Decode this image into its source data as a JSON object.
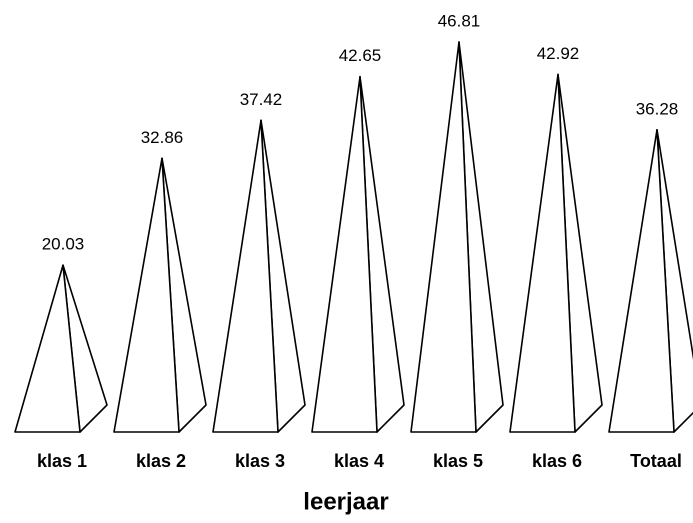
{
  "chart_data": {
    "type": "pyramid",
    "x_label": "leerjaar",
    "categories": [
      "klas 1",
      "klas 2",
      "klas 3",
      "klas 4",
      "klas 5",
      "klas 6",
      "Totaal"
    ],
    "values": [
      20.03,
      32.86,
      37.42,
      42.65,
      46.81,
      42.92,
      36.28
    ]
  }
}
